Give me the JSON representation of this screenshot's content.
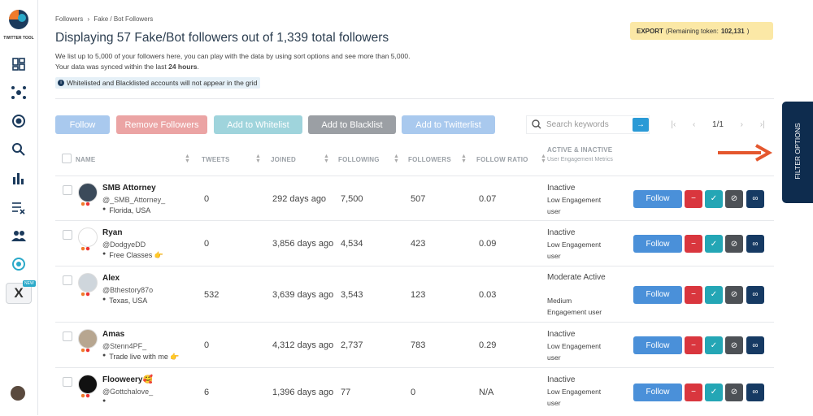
{
  "sidebar": {
    "brand": "TWITTER TOOL",
    "badge": "NEW"
  },
  "breadcrumb": [
    "Followers",
    "Fake / Bot Followers"
  ],
  "header": {
    "title": "Displaying 57 Fake/Bot followers out of 1,339 total followers",
    "description": "We list up to 5,000 of your followers here, you can play with the data by using sort options and see more than 5,000.",
    "sync_prefix": "Your data was synced within the last",
    "sync_hours": "24 hours",
    "sync_suffix": ".",
    "notice": "Whitelisted and Blacklisted accounts will not appear in the grid"
  },
  "export": {
    "label": "EXPORT",
    "token_prefix": "(Remaining token:",
    "token_value": "102,131",
    "token_suffix": ")"
  },
  "toolbar": {
    "buttons": [
      "Follow",
      "Remove Followers",
      "Add to Whitelist",
      "Add to Blacklist",
      "Add to Twitterlist"
    ],
    "search_placeholder": "Search keywords",
    "page": "1/1"
  },
  "filter_tab": "FILTER OPTIONS",
  "table": {
    "columns": [
      "NAME",
      "TWEETS",
      "JOINED",
      "FOLLOWING",
      "FOLLOWERS",
      "FOLLOW RATIO",
      "ACTIVE & INACTIVE"
    ],
    "column_note": "User Engagement Metrics",
    "follow_button": "Follow",
    "rows": [
      {
        "name": "SMB Attorney",
        "handle": "@_SMB_Attorney_",
        "location": "Florida, USA",
        "tweets": "0",
        "joined": "292 days ago",
        "following": "7,500",
        "followers": "507",
        "ratio": "0.07",
        "status": "Inactive",
        "engagement": "Low Engagement user"
      },
      {
        "name": "Ryan",
        "handle": "@DodgyeDD",
        "location": "Free Classes 👉",
        "tweets": "0",
        "joined": "3,856 days ago",
        "following": "4,534",
        "followers": "423",
        "ratio": "0.09",
        "status": "Inactive",
        "engagement": "Low Engagement user"
      },
      {
        "name": "Alex",
        "handle": "@Bthestory87o",
        "location": "Texas, USA",
        "tweets": "532",
        "joined": "3,639 days ago",
        "following": "3,543",
        "followers": "123",
        "ratio": "0.03",
        "status": "Moderate Active",
        "engagement": "Medium Engagement user"
      },
      {
        "name": "Amas",
        "handle": "@Stenn4PF_",
        "location": "Trade live with me 👉",
        "tweets": "0",
        "joined": "4,312 days ago",
        "following": "2,737",
        "followers": "783",
        "ratio": "0.29",
        "status": "Inactive",
        "engagement": "Low Engagement user"
      },
      {
        "name": "Flooweery🥰",
        "handle": "@Gottchalove_",
        "location": null,
        "tweets": "6",
        "joined": "1,396 days ago",
        "following": "77",
        "followers": "0",
        "ratio": "N/A",
        "status": "Inactive",
        "engagement": "Low Engagement user"
      }
    ]
  }
}
